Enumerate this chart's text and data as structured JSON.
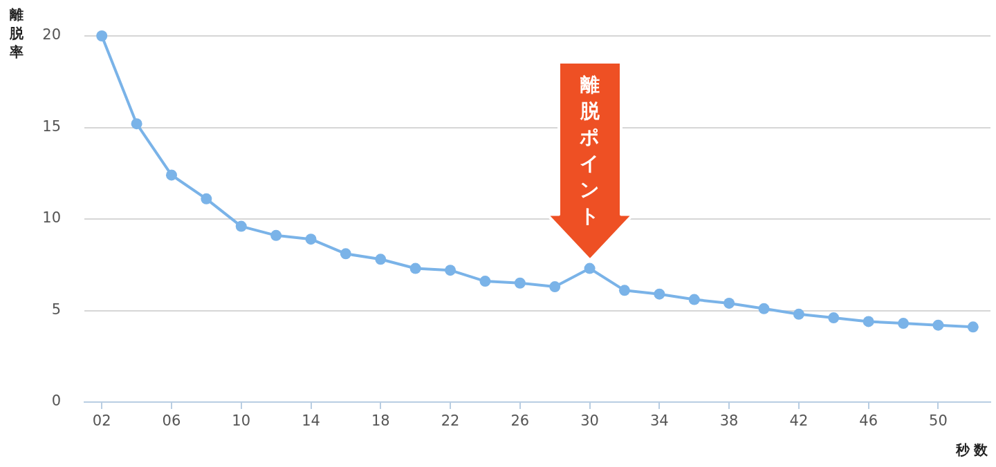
{
  "chart_data": {
    "type": "line",
    "ylabel": "離脱率",
    "xlabel": "秒数",
    "categories": [
      "02",
      null,
      "06",
      null,
      "10",
      null,
      "14",
      null,
      "18",
      null,
      "22",
      null,
      "26",
      null,
      "30",
      null,
      "34",
      null,
      "38",
      null,
      "42",
      null,
      "46",
      null,
      "50",
      null
    ],
    "series": [
      {
        "color": "#7ab3e8",
        "values": [
          20,
          15.2,
          12.4,
          11.1,
          9.6,
          9.1,
          8.9,
          8.1,
          7.8,
          7.3,
          7.2,
          6.6,
          6.5,
          6.3,
          7.3,
          6.1,
          5.9,
          5.6,
          5.4,
          5.1,
          4.8,
          4.6,
          4.4,
          4.3,
          4.2,
          4.1
        ]
      }
    ],
    "ylim": [
      0,
      20
    ],
    "yticks": [
      0,
      5,
      10,
      15,
      20
    ],
    "grid": "y",
    "marker": "circle",
    "line_style": "solid",
    "annotations": [
      {
        "text": "離脱ポイント",
        "x": "30",
        "y": 7.3
      }
    ]
  }
}
